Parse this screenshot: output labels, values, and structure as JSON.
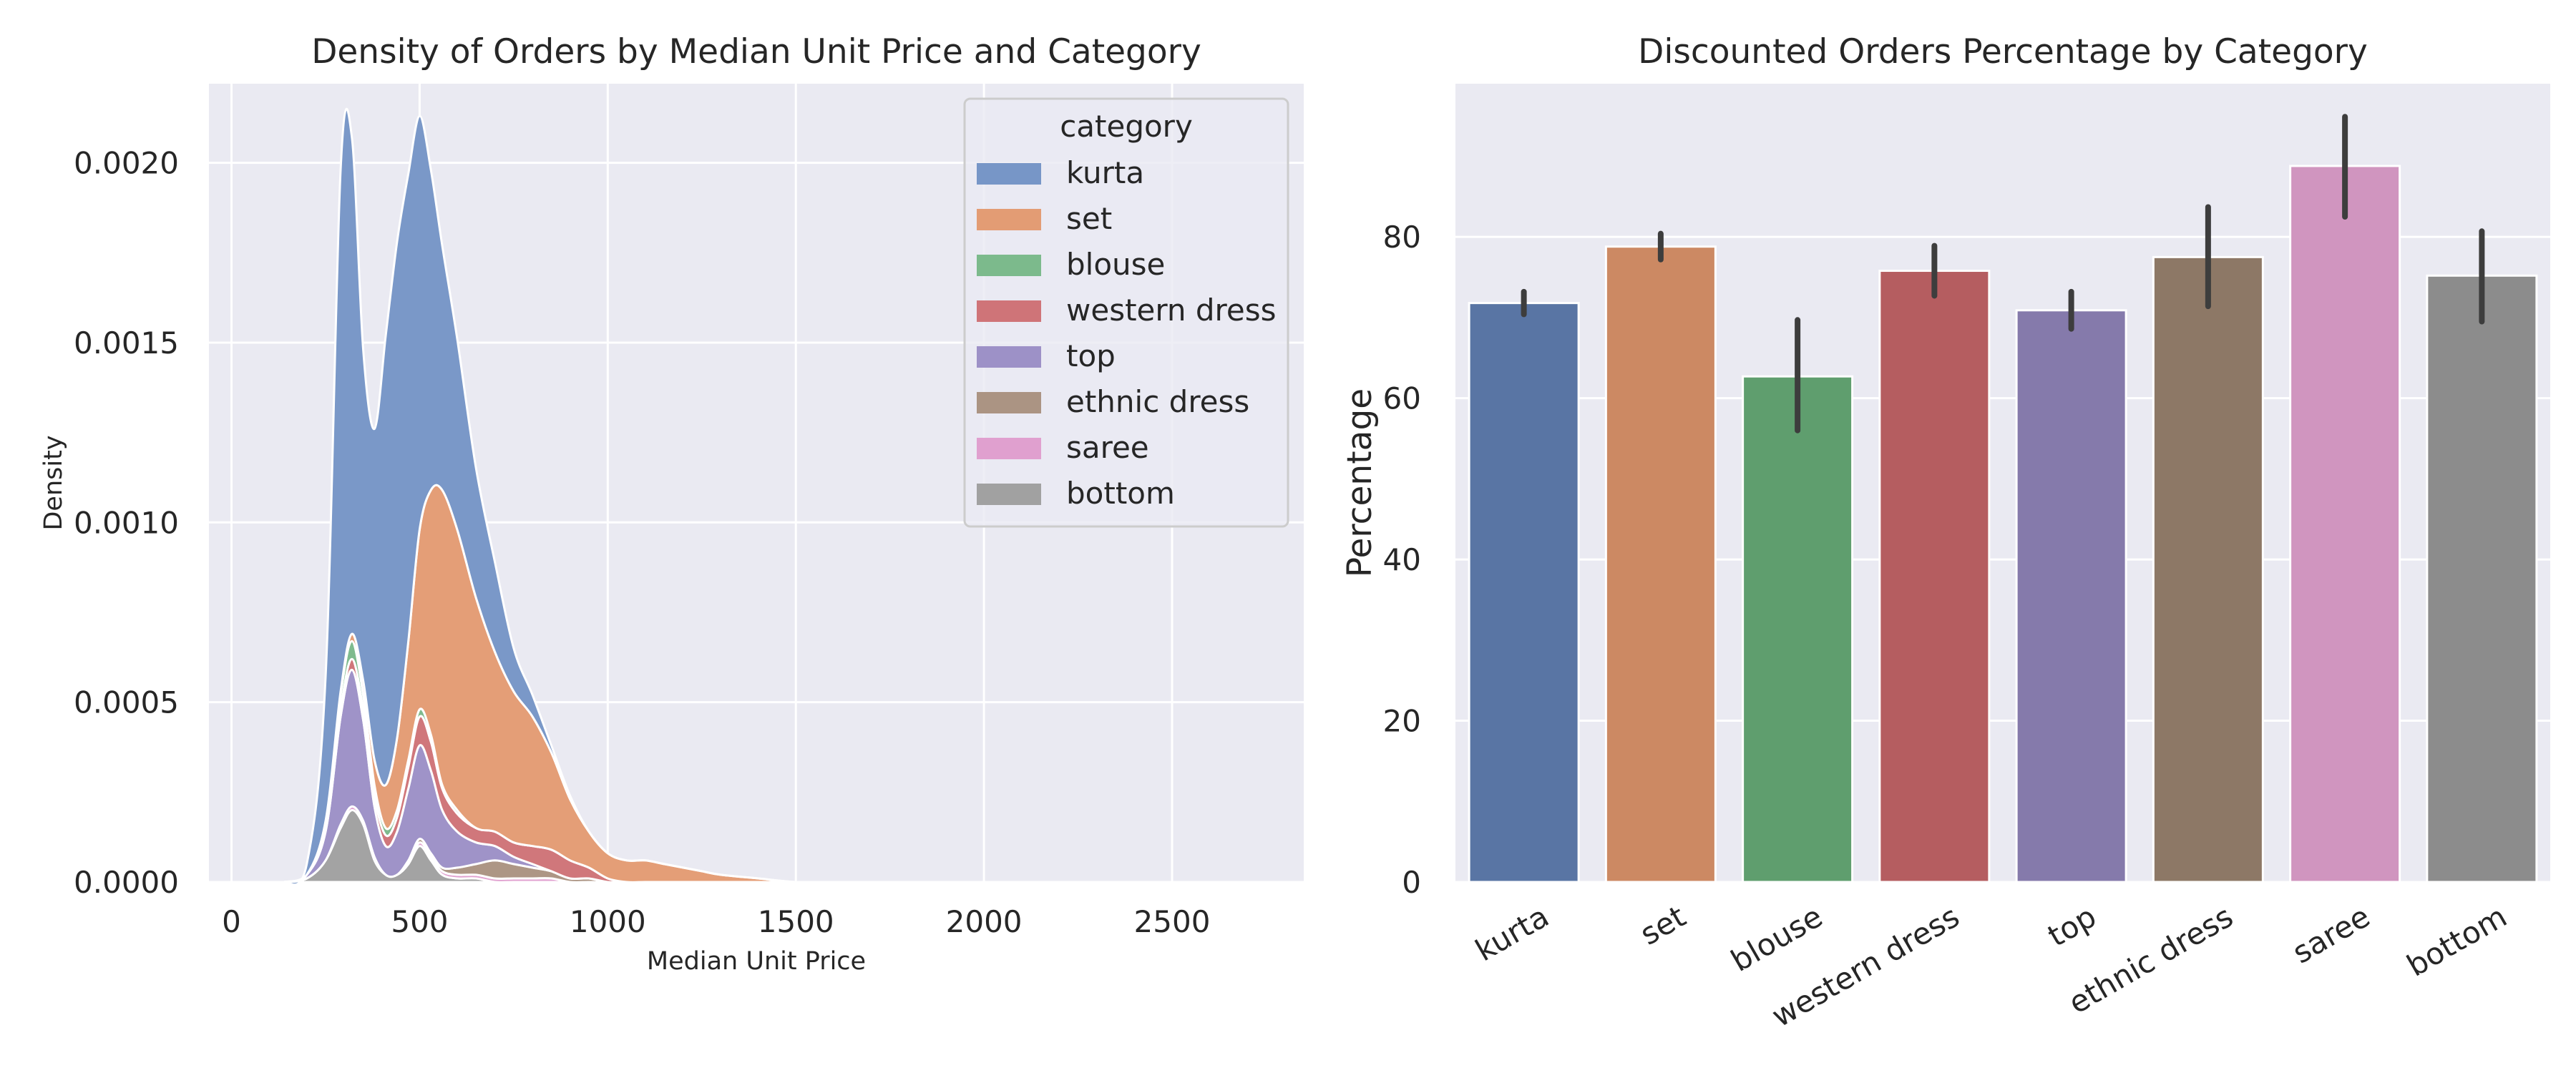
{
  "chart_data": [
    {
      "type": "area",
      "stacked": true,
      "title": "Density of Orders by Median Unit Price and Category",
      "xlabel": "Median Unit Price",
      "ylabel": "Density",
      "xlim": [
        -60,
        2850
      ],
      "ylim": [
        0,
        0.00222
      ],
      "xticks": [
        0,
        500,
        1000,
        1500,
        2000,
        2500
      ],
      "xtick_labels": [
        "0",
        "500",
        "1000",
        "1500",
        "2000",
        "2500"
      ],
      "yticks": [
        0,
        0.0005,
        0.001,
        0.0015,
        0.002
      ],
      "ytick_labels": [
        "0.0000",
        "0.0005",
        "0.0010",
        "0.0015",
        "0.0020"
      ],
      "grid": true,
      "legend": {
        "title": "category",
        "placement": "top-right",
        "entries": [
          "kurta",
          "set",
          "blouse",
          "western dress",
          "top",
          "ethnic dress",
          "saree",
          "bottom"
        ]
      },
      "x": [
        140,
        200,
        250,
        290,
        320,
        350,
        380,
        410,
        440,
        470,
        500,
        530,
        560,
        600,
        650,
        700,
        750,
        800,
        850,
        900,
        950,
        1000,
        1050,
        1100,
        1150,
        1200,
        1250,
        1300,
        1400,
        1500,
        1600,
        1700,
        1800,
        1900,
        2000
      ],
      "series": [
        {
          "name": "bottom",
          "color": "#a1a1a1",
          "values": [
            0,
            1e-05,
            6e-05,
            0.00015,
            0.0002,
            0.00016,
            6e-05,
            2e-05,
            2e-05,
            5e-05,
            0.0001,
            6e-05,
            2e-05,
            1e-05,
            1e-05,
            0,
            0,
            0,
            0,
            0,
            0,
            0,
            0,
            0,
            0,
            0,
            0,
            0,
            0,
            0,
            0,
            0,
            0,
            0,
            0
          ]
        },
        {
          "name": "saree",
          "color": "#e0a0cf",
          "values": [
            0,
            0,
            0,
            1e-05,
            1e-05,
            1e-05,
            1e-05,
            0,
            0,
            0,
            1e-05,
            1e-05,
            1e-05,
            1e-05,
            1e-05,
            1e-05,
            1e-05,
            1e-05,
            1e-05,
            0,
            0,
            0,
            0,
            0,
            0,
            0,
            0,
            0,
            0,
            0,
            0,
            0,
            0,
            0,
            0
          ]
        },
        {
          "name": "ethnic dress",
          "color": "#ab9483",
          "values": [
            0,
            0,
            0,
            0,
            0,
            0,
            0,
            0,
            0,
            1e-05,
            1e-05,
            1e-05,
            1e-05,
            2e-05,
            3e-05,
            5e-05,
            4e-05,
            3e-05,
            2e-05,
            1e-05,
            1e-05,
            0,
            0,
            0,
            0,
            0,
            0,
            0,
            0,
            0,
            0,
            0,
            0,
            0,
            0
          ]
        },
        {
          "name": "top",
          "color": "#9d91c7",
          "values": [
            0,
            1e-05,
            8e-05,
            0.0003,
            0.00038,
            0.00028,
            0.00014,
            8e-05,
            0.00012,
            0.0002,
            0.00026,
            0.00023,
            0.00016,
            0.0001,
            6e-05,
            4e-05,
            2e-05,
            1e-05,
            0,
            0,
            0,
            0,
            0,
            0,
            0,
            0,
            0,
            0,
            0,
            0,
            0,
            0,
            0,
            0,
            0
          ]
        },
        {
          "name": "western dress",
          "color": "#cf7478",
          "values": [
            0,
            0,
            1e-05,
            2e-05,
            3e-05,
            3e-05,
            3e-05,
            3e-05,
            4e-05,
            6e-05,
            8e-05,
            8e-05,
            6e-05,
            5e-05,
            4e-05,
            4e-05,
            4e-05,
            5e-05,
            6e-05,
            5e-05,
            3e-05,
            1e-05,
            0,
            0,
            0,
            0,
            0,
            0,
            0,
            0,
            0,
            0,
            0,
            0,
            0
          ]
        },
        {
          "name": "blouse",
          "color": "#7cba8c",
          "values": [
            0,
            0,
            1e-05,
            4e-05,
            5e-05,
            4e-05,
            3e-05,
            2e-05,
            2e-05,
            2e-05,
            2e-05,
            2e-05,
            1e-05,
            1e-05,
            0,
            0,
            0,
            0,
            0,
            0,
            0,
            0,
            0,
            0,
            0,
            0,
            0,
            0,
            0,
            0,
            0,
            0,
            0,
            0,
            0
          ]
        },
        {
          "name": "set",
          "color": "#e39c74",
          "values": [
            0,
            0,
            1e-05,
            1e-05,
            2e-05,
            4e-05,
            7e-05,
            0.00012,
            0.0002,
            0.00033,
            0.0005,
            0.00068,
            0.00082,
            0.00078,
            0.00064,
            0.0005,
            0.00042,
            0.00036,
            0.00027,
            0.00017,
            0.0001,
            7e-05,
            6e-05,
            6e-05,
            5e-05,
            4e-05,
            3e-05,
            2e-05,
            1e-05,
            0,
            0,
            0,
            0,
            0,
            0
          ]
        },
        {
          "name": "kurta",
          "color": "#7796c7",
          "values": [
            0,
            3e-05,
            0.0004,
            0.00145,
            0.00138,
            0.00092,
            0.00092,
            0.00125,
            0.00138,
            0.0013,
            0.00115,
            0.00089,
            0.00068,
            0.00053,
            0.00036,
            0.00025,
            0.00012,
            6e-05,
            2e-05,
            1e-05,
            0,
            0,
            0,
            0,
            0,
            0,
            0,
            0,
            0,
            0,
            0,
            0,
            0,
            0,
            0
          ]
        }
      ]
    },
    {
      "type": "bar",
      "title": "Discounted Orders Percentage by Category",
      "xlabel": "",
      "ylabel": "Percentage",
      "ylim": [
        0,
        99
      ],
      "yticks": [
        0,
        20,
        40,
        60,
        80
      ],
      "ytick_labels": [
        "0",
        "20",
        "40",
        "60",
        "80"
      ],
      "grid": true,
      "categories": [
        "kurta",
        "set",
        "blouse",
        "western dress",
        "top",
        "ethnic dress",
        "saree",
        "bottom"
      ],
      "values": [
        71.8,
        78.8,
        62.7,
        75.8,
        70.9,
        77.5,
        88.8,
        75.2
      ],
      "error_low": [
        70.4,
        77.2,
        56.0,
        72.7,
        68.6,
        71.4,
        82.5,
        69.5
      ],
      "error_high": [
        73.2,
        80.4,
        69.7,
        78.9,
        73.2,
        83.7,
        94.9,
        80.7
      ],
      "colors": [
        "#5975a4",
        "#cc8963",
        "#5f9e6e",
        "#b55d60",
        "#857aab",
        "#8d7866",
        "#d095bf",
        "#8c8c8c"
      ]
    }
  ]
}
